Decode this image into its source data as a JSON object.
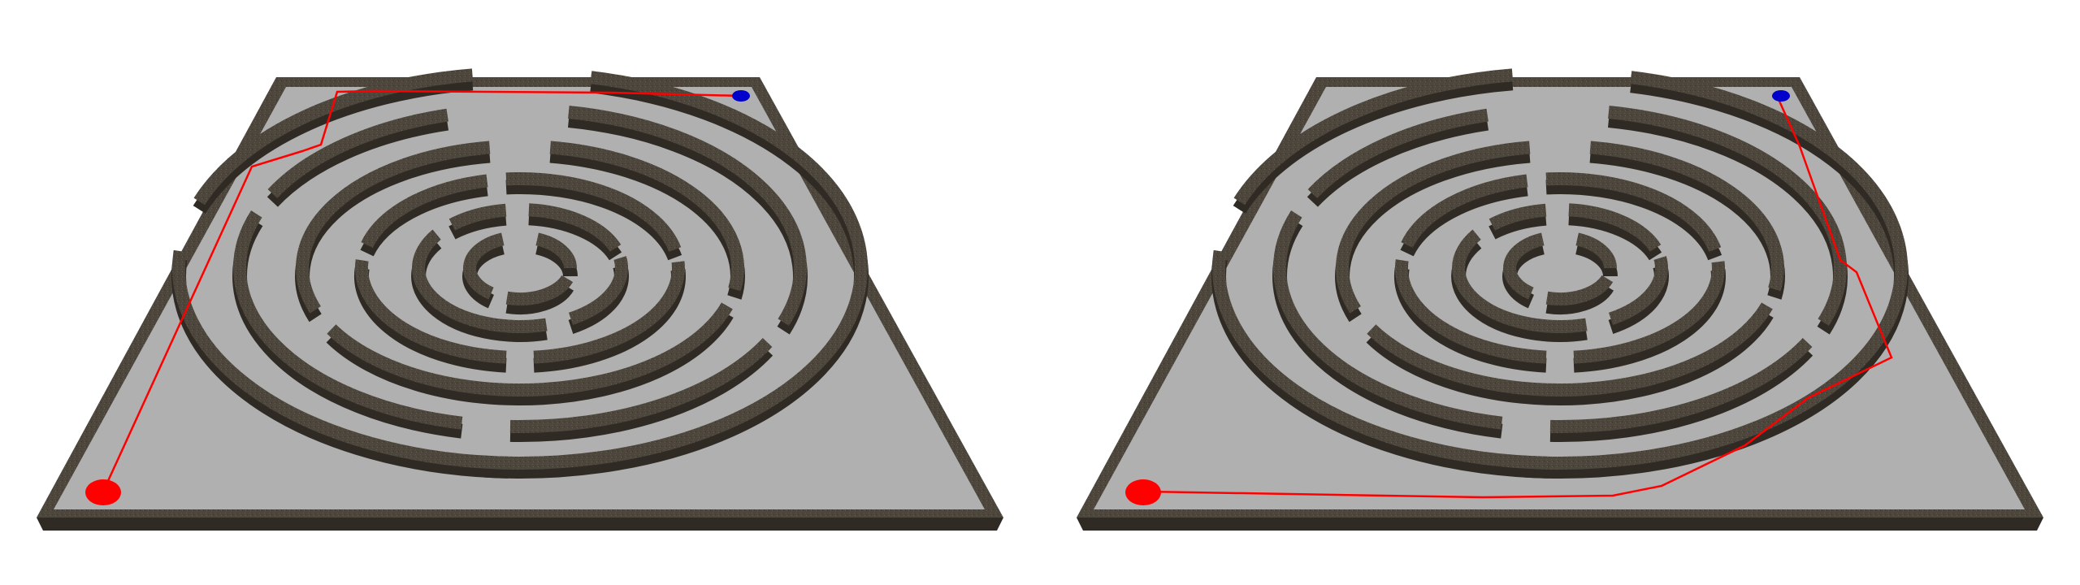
{
  "colors": {
    "background": "#ffffff",
    "floor": "#b0b0b0",
    "wall_top": "#4d463d",
    "wall_face": "#2f2a24",
    "wall_inner_face": "#6c6556",
    "path": "#ff0000",
    "start_marker": "#ff0000",
    "goal_marker": "#0000cc"
  },
  "panels": [
    {
      "id": "left",
      "route": "outer-left-side"
    },
    {
      "id": "right",
      "route": "outer-bottom-right"
    }
  ]
}
